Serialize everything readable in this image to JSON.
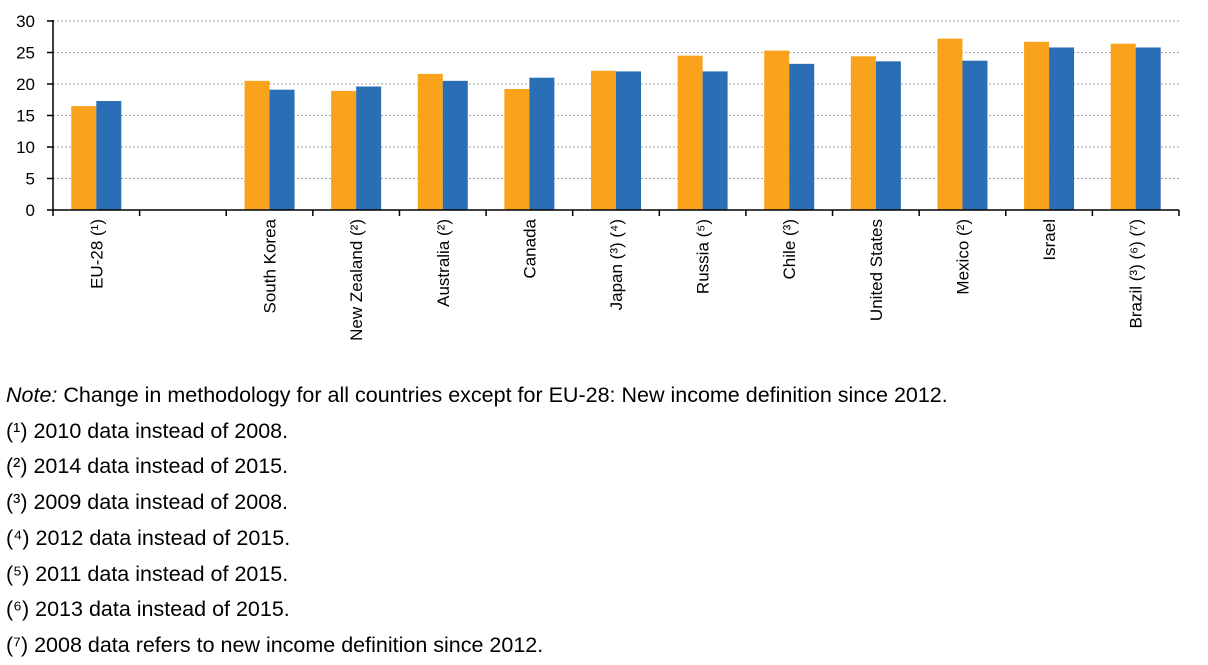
{
  "chart_data": {
    "type": "bar",
    "categories": [
      "EU-28 (¹)",
      "",
      "South Korea",
      "New Zealand (²)",
      "Australia (²)",
      "Canada",
      "Japan (³) (⁴)",
      "Russia (⁵)",
      "Chile (³)",
      "United States",
      "Mexico (²)",
      "Israel",
      "Brazil (³) (⁶) (⁷)"
    ],
    "series": [
      {
        "values": [
          16.5,
          null,
          20.5,
          18.9,
          21.6,
          19.2,
          22.1,
          24.5,
          25.3,
          24.4,
          27.2,
          26.7,
          26.4
        ]
      },
      {
        "values": [
          17.3,
          null,
          19.1,
          19.6,
          20.5,
          21.0,
          22.0,
          22.0,
          23.2,
          23.6,
          23.7,
          25.8,
          25.8
        ]
      }
    ],
    "colors": [
      "#f9a21b",
      "#2a6eb5"
    ],
    "ylim": [
      0,
      30
    ],
    "yticks": [
      0,
      5,
      10,
      15,
      20,
      25,
      30
    ],
    "grid": true,
    "title": "",
    "xlabel": "",
    "ylabel": ""
  },
  "notes": {
    "lead": "Note:",
    "main": " Change in methodology for all countries except for EU-28: New income definition since 2012.",
    "footnotes": [
      "(¹) 2010 data instead of 2008.",
      "(²) 2014 data instead of 2015.",
      "(³) 2009 data instead of 2008.",
      "(⁴) 2012 data instead of 2015.",
      "(⁵) 2011 data instead of 2015.",
      "(⁶) 2013 data instead of 2015.",
      "(⁷) 2008 data refers to new income definition since 2012."
    ]
  }
}
